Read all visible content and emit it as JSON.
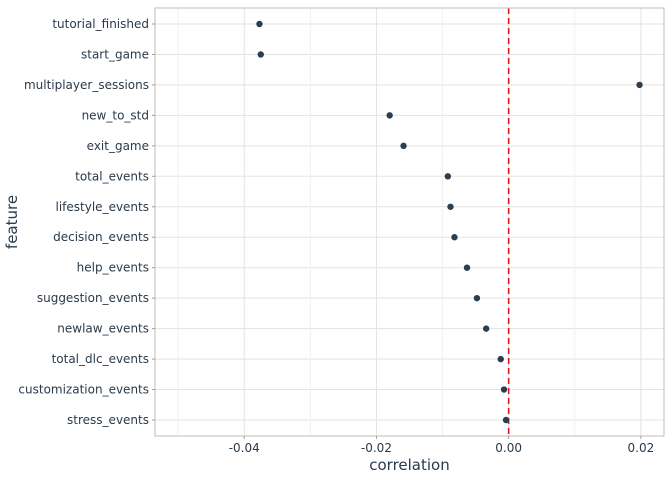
{
  "chart_data": {
    "type": "scatter",
    "xlabel": "correlation",
    "ylabel": "feature",
    "xlim": [
      -0.0535,
      0.0235
    ],
    "x_ticks": [
      -0.04,
      -0.02,
      0.0,
      0.02
    ],
    "x_tick_labels": [
      "-0.04",
      "-0.02",
      "0.00",
      "0.02"
    ],
    "reference_line": {
      "x": 0.0,
      "style": "dashed",
      "color": "#e8141c"
    },
    "grid": true,
    "point_color": "#2c3e50",
    "categories": [
      "tutorial_finished",
      "start_game",
      "multiplayer_sessions",
      "new_to_std",
      "exit_game",
      "total_events",
      "lifestyle_events",
      "decision_events",
      "help_events",
      "suggestion_events",
      "newlaw_events",
      "total_dlc_events",
      "customization_events",
      "stress_events"
    ],
    "values": [
      -0.0377,
      -0.0375,
      0.0198,
      -0.018,
      -0.0159,
      -0.0092,
      -0.0088,
      -0.0082,
      -0.0063,
      -0.0048,
      -0.0034,
      -0.0012,
      -0.0007,
      -0.0004
    ]
  }
}
